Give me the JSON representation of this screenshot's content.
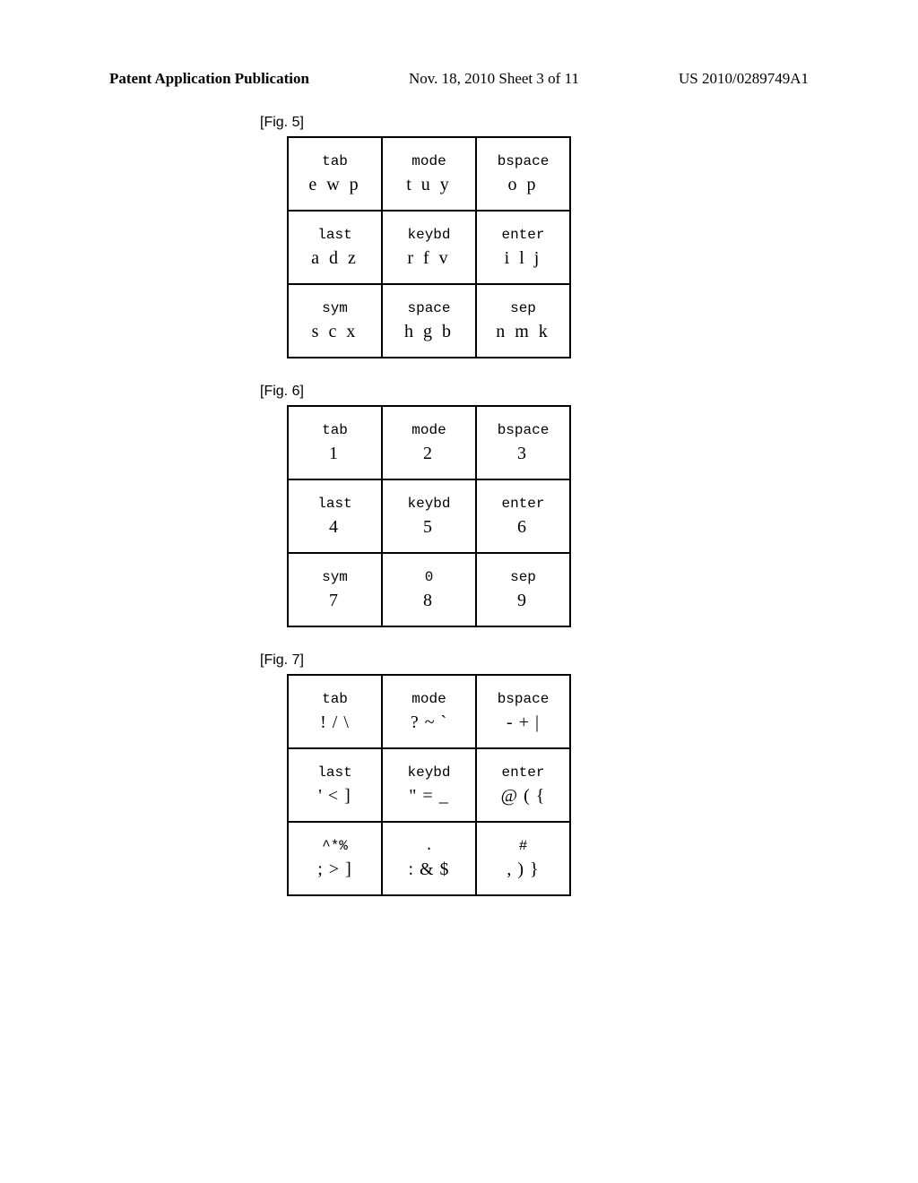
{
  "header": {
    "left": "Patent Application Publication",
    "center": "Nov. 18, 2010  Sheet 3 of 11",
    "right": "US 2010/0289749A1"
  },
  "figures": [
    {
      "label": "[Fig. 5]",
      "rows": [
        [
          {
            "top": "tab",
            "bottom": "e w p"
          },
          {
            "top": "mode",
            "bottom": "t u y"
          },
          {
            "top": "bspace",
            "bottom": "o p"
          }
        ],
        [
          {
            "top": "last",
            "bottom": "a d z"
          },
          {
            "top": "keybd",
            "bottom": "r f v"
          },
          {
            "top": "enter",
            "bottom": "i l j"
          }
        ],
        [
          {
            "top": "sym",
            "bottom": "s c x"
          },
          {
            "top": "space",
            "bottom": "h g b"
          },
          {
            "top": "sep",
            "bottom": "n m k"
          }
        ]
      ]
    },
    {
      "label": "[Fig. 6]",
      "rows": [
        [
          {
            "top": "tab",
            "bottom": "1"
          },
          {
            "top": "mode",
            "bottom": "2"
          },
          {
            "top": "bspace",
            "bottom": "3"
          }
        ],
        [
          {
            "top": "last",
            "bottom": "4"
          },
          {
            "top": "keybd",
            "bottom": "5"
          },
          {
            "top": "enter",
            "bottom": "6"
          }
        ],
        [
          {
            "top": "sym",
            "bottom": "7"
          },
          {
            "top": "0",
            "bottom": "8"
          },
          {
            "top": "sep",
            "bottom": "9"
          }
        ]
      ]
    },
    {
      "label": "[Fig. 7]",
      "rows": [
        [
          {
            "top": "tab",
            "bottom": "! / \\"
          },
          {
            "top": "mode",
            "bottom": "? ~ `"
          },
          {
            "top": "bspace",
            "bottom": "- + |"
          }
        ],
        [
          {
            "top": "last",
            "bottom": "' < ]"
          },
          {
            "top": "keybd",
            "bottom": "\" = _"
          },
          {
            "top": "enter",
            "bottom": "@ ( {"
          }
        ],
        [
          {
            "top": "^*%",
            "bottom": "; > ]"
          },
          {
            "top": ".",
            "bottom": ": & $"
          },
          {
            "top": "#",
            "bottom": ", ) }"
          }
        ]
      ]
    }
  ]
}
